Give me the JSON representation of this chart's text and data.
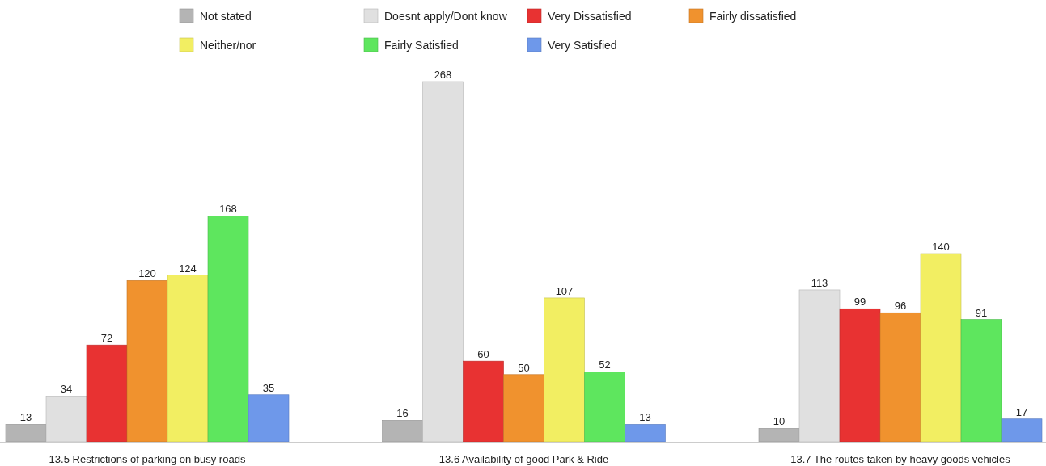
{
  "chart_data": {
    "type": "bar",
    "categories": [
      "13.5 Restrictions of parking on busy roads",
      "13.6 Availability of good Park & Ride",
      "13.7 The routes taken by heavy goods vehicles"
    ],
    "series": [
      {
        "name": "Not stated",
        "color": "#b4b4b4",
        "values": [
          13,
          16,
          10
        ]
      },
      {
        "name": "Doesnt apply/Dont know",
        "color": "#e0e0e0",
        "values": [
          34,
          268,
          113
        ]
      },
      {
        "name": "Very Dissatisfied",
        "color": "#e83232",
        "values": [
          72,
          60,
          99
        ]
      },
      {
        "name": "Fairly dissatisfied",
        "color": "#f0922e",
        "values": [
          120,
          50,
          96
        ]
      },
      {
        "name": "Neither/nor",
        "color": "#f2ee62",
        "values": [
          124,
          107,
          140
        ]
      },
      {
        "name": "Fairly Satisfied",
        "color": "#5ee65e",
        "values": [
          168,
          52,
          91
        ]
      },
      {
        "name": "Very Satisfied",
        "color": "#6e98ea",
        "values": [
          35,
          13,
          17
        ]
      }
    ],
    "data_labels": true,
    "legend": "top",
    "grid": false
  }
}
